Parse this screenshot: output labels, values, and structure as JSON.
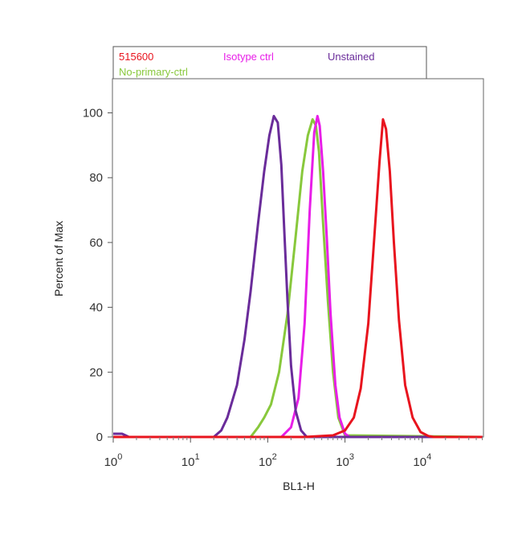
{
  "chart_data": {
    "type": "line",
    "title": "",
    "xlabel": "BL1-H",
    "ylabel": "Percent of Max",
    "x_scale": "log",
    "xlim": [
      1,
      60000
    ],
    "ylim": [
      0,
      108
    ],
    "x_ticks": [
      {
        "value": 1,
        "base": "10",
        "exp": "0"
      },
      {
        "value": 10,
        "base": "10",
        "exp": "1"
      },
      {
        "value": 100,
        "base": "10",
        "exp": "2"
      },
      {
        "value": 1000,
        "base": "10",
        "exp": "3"
      },
      {
        "value": 10000,
        "base": "10",
        "exp": "4"
      }
    ],
    "y_ticks": [
      0,
      20,
      40,
      60,
      80,
      100
    ],
    "grid": false,
    "legend_position": "top",
    "series": [
      {
        "name": "515600",
        "color": "#e8141e",
        "x": [
          1,
          300,
          700,
          1000,
          1300,
          1600,
          2000,
          2400,
          2800,
          3100,
          3400,
          3800,
          4300,
          5000,
          6000,
          7500,
          9500,
          12000,
          14000,
          20000,
          60000
        ],
        "y": [
          0,
          0,
          0.5,
          2,
          6,
          15,
          35,
          62,
          85,
          98,
          95,
          82,
          60,
          36,
          16,
          6,
          1.5,
          0.3,
          0,
          0,
          0
        ]
      },
      {
        "name": "Isotype ctrl",
        "color": "#e81ee8",
        "x": [
          1,
          150,
          200,
          250,
          300,
          350,
          400,
          440,
          470,
          520,
          580,
          650,
          750,
          850,
          1000,
          1150,
          1400,
          60000
        ],
        "y": [
          0,
          0,
          3,
          12,
          35,
          70,
          94,
          99,
          96,
          82,
          62,
          38,
          16,
          6,
          1,
          0,
          0,
          0
        ]
      },
      {
        "name": "No-primary-ctrl",
        "color": "#88c83c",
        "x": [
          1,
          60,
          75,
          90,
          110,
          140,
          180,
          230,
          280,
          330,
          380,
          420,
          460,
          520,
          600,
          700,
          820,
          1000,
          60000
        ],
        "y": [
          0,
          0,
          3,
          6,
          10,
          20,
          38,
          62,
          82,
          93,
          98,
          96,
          88,
          66,
          42,
          20,
          6,
          0.5,
          0
        ]
      },
      {
        "name": "Unstained",
        "color": "#6a2c9a",
        "x": [
          1,
          1.3,
          1.6,
          20,
          25,
          30,
          40,
          50,
          60,
          75,
          90,
          105,
          120,
          135,
          150,
          165,
          180,
          200,
          230,
          270,
          320,
          60000
        ],
        "y": [
          1,
          1,
          0,
          0,
          2,
          6,
          16,
          30,
          45,
          66,
          82,
          93,
          99,
          97,
          84,
          62,
          42,
          22,
          8,
          2,
          0,
          0
        ]
      }
    ]
  }
}
